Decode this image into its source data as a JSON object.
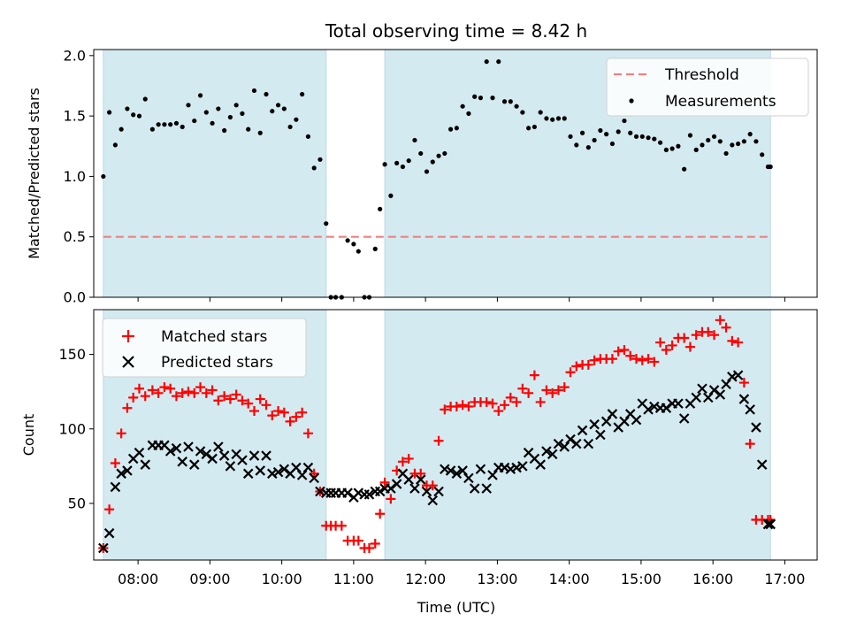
{
  "chart_data": {
    "type": "scatter",
    "title": "Total observing time = 8.42 h",
    "xlabel": "Time (UTC)",
    "x_ticks": [
      "08:00",
      "09:00",
      "10:00",
      "11:00",
      "12:00",
      "13:00",
      "14:00",
      "15:00",
      "16:00",
      "17:00"
    ],
    "x_range": [
      "07:23",
      "17:27"
    ],
    "shaded_intervals": [
      [
        "07:31",
        "10:37"
      ],
      [
        "11:26",
        "16:48"
      ]
    ],
    "colors": {
      "shade": "#d4eaf1",
      "threshold": "#f08080",
      "measurements": "#000000",
      "matched": "#ff0000",
      "predicted": "#000000"
    },
    "top": {
      "ylabel": "Matched/Predicted stars",
      "ylim": [
        0,
        2.05
      ],
      "y_ticks": [
        "0.0",
        "0.5",
        "1.0",
        "1.5",
        "2.0"
      ],
      "threshold": {
        "name": "Threshold",
        "value": 0.5,
        "x": [
          "07:31",
          "16:48"
        ]
      },
      "legend": [
        "Threshold",
        "Measurements"
      ],
      "measurements": {
        "name": "Measurements",
        "x": [
          "07:31",
          "07:36",
          "07:41",
          "07:46",
          "07:51",
          "07:56",
          "08:01",
          "08:06",
          "08:12",
          "08:17",
          "08:22",
          "08:27",
          "08:32",
          "08:37",
          "08:42",
          "08:47",
          "08:52",
          "08:57",
          "09:02",
          "09:07",
          "09:12",
          "09:17",
          "09:22",
          "09:27",
          "09:32",
          "09:37",
          "09:42",
          "09:47",
          "09:52",
          "09:57",
          "10:02",
          "10:07",
          "10:12",
          "10:17",
          "10:22",
          "10:27",
          "10:32",
          "10:37",
          "10:41",
          "10:45",
          "10:50",
          "10:55",
          "11:00",
          "11:04",
          "11:09",
          "11:13",
          "11:18",
          "11:22",
          "11:26",
          "11:31",
          "11:36",
          "11:41",
          "11:46",
          "11:51",
          "11:56",
          "12:01",
          "12:06",
          "12:11",
          "12:16",
          "12:21",
          "12:26",
          "12:31",
          "12:36",
          "12:41",
          "12:46",
          "12:51",
          "12:56",
          "13:01",
          "13:06",
          "13:11",
          "13:16",
          "13:21",
          "13:26",
          "13:31",
          "13:36",
          "13:41",
          "13:46",
          "13:51",
          "13:56",
          "14:01",
          "14:06",
          "14:11",
          "14:16",
          "14:21",
          "14:26",
          "14:31",
          "14:36",
          "14:41",
          "14:46",
          "14:51",
          "14:56",
          "15:01",
          "15:06",
          "15:11",
          "15:16",
          "15:21",
          "15:26",
          "15:31",
          "15:36",
          "15:41",
          "15:46",
          "15:51",
          "15:56",
          "16:01",
          "16:06",
          "16:11",
          "16:16",
          "16:21",
          "16:26",
          "16:31",
          "16:36",
          "16:41",
          "16:46",
          "16:48"
        ],
        "y": [
          1.0,
          1.53,
          1.26,
          1.39,
          1.56,
          1.51,
          1.5,
          1.64,
          1.39,
          1.43,
          1.43,
          1.43,
          1.44,
          1.41,
          1.59,
          1.46,
          1.67,
          1.53,
          1.44,
          1.56,
          1.38,
          1.49,
          1.59,
          1.52,
          1.39,
          1.71,
          1.36,
          1.68,
          1.54,
          1.59,
          1.56,
          1.41,
          1.47,
          1.68,
          1.33,
          1.07,
          1.14,
          0.61,
          0,
          0,
          0,
          0.47,
          0.44,
          0.38,
          0,
          0,
          0.4,
          0.73,
          1.1,
          0.84,
          1.11,
          1.08,
          1.13,
          1.3,
          1.19,
          1.04,
          1.12,
          1.17,
          1.19,
          1.39,
          1.4,
          1.58,
          1.52,
          1.66,
          1.65,
          1.95,
          1.65,
          1.95,
          1.62,
          1.62,
          1.58,
          1.53,
          1.4,
          1.41,
          1.53,
          1.48,
          1.47,
          1.48,
          1.48,
          1.33,
          1.26,
          1.36,
          1.24,
          1.3,
          1.38,
          1.35,
          1.27,
          1.37,
          1.46,
          1.36,
          1.33,
          1.33,
          1.32,
          1.31,
          1.28,
          1.22,
          1.23,
          1.25,
          1.06,
          1.34,
          1.22,
          1.26,
          1.3,
          1.33,
          1.29,
          1.19,
          1.26,
          1.27,
          1.29,
          1.35,
          1.29,
          1.18,
          1.08,
          1.08
        ]
      }
    },
    "bottom": {
      "ylabel": "Count",
      "ylim": [
        12,
        180
      ],
      "y_ticks": [
        "50",
        "100",
        "150"
      ],
      "legend": [
        "Matched stars",
        "Predicted stars"
      ],
      "matched": {
        "name": "Matched stars",
        "x": [
          "07:31",
          "07:36",
          "07:41",
          "07:46",
          "07:51",
          "07:56",
          "08:01",
          "08:06",
          "08:12",
          "08:17",
          "08:22",
          "08:27",
          "08:32",
          "08:37",
          "08:42",
          "08:47",
          "08:52",
          "08:57",
          "09:02",
          "09:07",
          "09:12",
          "09:17",
          "09:22",
          "09:27",
          "09:32",
          "09:37",
          "09:42",
          "09:47",
          "09:52",
          "09:57",
          "10:02",
          "10:07",
          "10:12",
          "10:17",
          "10:22",
          "10:27",
          "10:32",
          "10:37",
          "10:41",
          "10:45",
          "10:50",
          "10:55",
          "11:00",
          "11:04",
          "11:09",
          "11:13",
          "11:18",
          "11:22",
          "11:26",
          "11:31",
          "11:36",
          "11:41",
          "11:46",
          "11:51",
          "11:56",
          "12:01",
          "12:06",
          "12:11",
          "12:16",
          "12:21",
          "12:26",
          "12:31",
          "12:36",
          "12:41",
          "12:46",
          "12:51",
          "12:56",
          "13:01",
          "13:06",
          "13:11",
          "13:16",
          "13:21",
          "13:26",
          "13:31",
          "13:36",
          "13:41",
          "13:46",
          "13:51",
          "13:56",
          "14:01",
          "14:06",
          "14:11",
          "14:16",
          "14:21",
          "14:26",
          "14:31",
          "14:36",
          "14:41",
          "14:46",
          "14:51",
          "14:56",
          "15:01",
          "15:06",
          "15:11",
          "15:16",
          "15:21",
          "15:26",
          "15:31",
          "15:36",
          "15:41",
          "15:46",
          "15:51",
          "15:56",
          "16:01",
          "16:06",
          "16:11",
          "16:16",
          "16:21",
          "16:26",
          "16:31",
          "16:36",
          "16:41",
          "16:46",
          "16:48"
        ],
        "y": [
          20,
          46,
          77,
          97,
          114,
          121,
          127,
          122,
          126,
          124,
          128,
          127,
          122,
          124,
          125,
          124,
          128,
          124,
          126,
          119,
          122,
          120,
          123,
          119,
          117,
          112,
          120,
          116,
          109,
          112,
          111,
          105,
          108,
          111,
          97,
          70,
          58,
          35,
          35,
          35,
          35,
          25,
          25,
          25,
          20,
          20,
          23,
          43,
          64,
          53,
          72,
          78,
          80,
          70,
          70,
          62,
          62,
          92,
          113,
          115,
          115,
          116,
          115,
          118,
          118,
          118,
          117,
          112,
          116,
          121,
          118,
          127,
          124,
          136,
          118,
          126,
          124,
          126,
          128,
          138,
          142,
          143,
          143,
          146,
          147,
          147,
          147,
          152,
          153,
          149,
          147,
          146,
          147,
          145,
          158,
          153,
          156,
          161,
          161,
          155,
          163,
          165,
          165,
          163,
          173,
          168,
          159,
          158,
          131,
          90,
          39,
          39,
          39,
          39
        ]
      },
      "predicted": {
        "name": "Predicted stars",
        "x": [
          "07:31",
          "07:36",
          "07:41",
          "07:46",
          "07:51",
          "07:56",
          "08:01",
          "08:06",
          "08:12",
          "08:17",
          "08:22",
          "08:27",
          "08:32",
          "08:37",
          "08:42",
          "08:47",
          "08:52",
          "08:57",
          "09:02",
          "09:07",
          "09:12",
          "09:17",
          "09:22",
          "09:27",
          "09:32",
          "09:37",
          "09:42",
          "09:47",
          "09:52",
          "09:57",
          "10:02",
          "10:07",
          "10:12",
          "10:17",
          "10:22",
          "10:27",
          "10:32",
          "10:37",
          "10:41",
          "10:45",
          "10:50",
          "10:55",
          "11:00",
          "11:04",
          "11:09",
          "11:13",
          "11:18",
          "11:22",
          "11:26",
          "11:31",
          "11:36",
          "11:41",
          "11:46",
          "11:51",
          "11:56",
          "12:01",
          "12:06",
          "12:11",
          "12:16",
          "12:21",
          "12:26",
          "12:31",
          "12:36",
          "12:41",
          "12:46",
          "12:51",
          "12:56",
          "13:01",
          "13:06",
          "13:11",
          "13:16",
          "13:21",
          "13:26",
          "13:31",
          "13:36",
          "13:41",
          "13:46",
          "13:51",
          "13:56",
          "14:01",
          "14:06",
          "14:11",
          "14:16",
          "14:21",
          "14:26",
          "14:31",
          "14:36",
          "14:41",
          "14:46",
          "14:51",
          "14:56",
          "15:01",
          "15:06",
          "15:11",
          "15:16",
          "15:21",
          "15:26",
          "15:31",
          "15:36",
          "15:41",
          "15:46",
          "15:51",
          "15:56",
          "16:01",
          "16:06",
          "16:11",
          "16:16",
          "16:21",
          "16:26",
          "16:31",
          "16:36",
          "16:41",
          "16:46",
          "16:48"
        ],
        "y": [
          20,
          30,
          61,
          70,
          72,
          80,
          84,
          76,
          89,
          89,
          89,
          85,
          87,
          78,
          88,
          76,
          85,
          83,
          80,
          88,
          82,
          75,
          83,
          79,
          70,
          82,
          72,
          82,
          70,
          71,
          73,
          70,
          74,
          69,
          74,
          67,
          58,
          57,
          57,
          57,
          57,
          57,
          54,
          57,
          56,
          56,
          58,
          58,
          60,
          60,
          63,
          70,
          66,
          60,
          66,
          58,
          52,
          58,
          73,
          72,
          70,
          72,
          67,
          60,
          73,
          60,
          69,
          74,
          74,
          73,
          74,
          75,
          84,
          80,
          76,
          85,
          83,
          90,
          88,
          93,
          90,
          99,
          90,
          103,
          96,
          105,
          110,
          101,
          105,
          110,
          106,
          117,
          113,
          115,
          114,
          114,
          117,
          117,
          107,
          117,
          121,
          127,
          121,
          126,
          123,
          130,
          135,
          136,
          120,
          113,
          101,
          76,
          36,
          36
        ]
      }
    }
  }
}
